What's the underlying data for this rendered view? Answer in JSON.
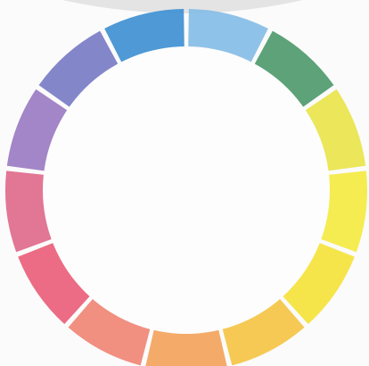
{
  "segments": [
    {
      "color": "#86bde6"
    },
    {
      "color": "#4f9a6c"
    },
    {
      "color": "#e9e44c"
    },
    {
      "color": "#f4ea42"
    },
    {
      "color": "#f5e23c"
    },
    {
      "color": "#f4c444"
    },
    {
      "color": "#f3a35c"
    },
    {
      "color": "#f08676"
    },
    {
      "color": "#e9607a"
    },
    {
      "color": "#df6a8c"
    },
    {
      "color": "#9b7cc2"
    },
    {
      "color": "#7a7cc6"
    },
    {
      "color": "#3f90d2"
    }
  ]
}
